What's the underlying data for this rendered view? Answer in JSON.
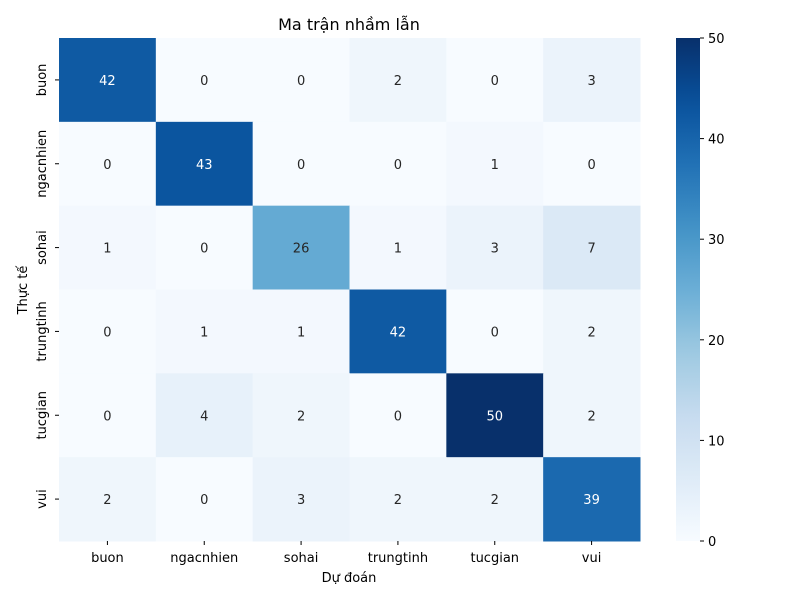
{
  "chart_data": {
    "type": "heatmap",
    "title": "Ma trận nhầm lẫn",
    "xlabel": "Dự đoán",
    "ylabel": "Thực tế",
    "x_categories": [
      "buon",
      "ngacnhien",
      "sohai",
      "trungtinh",
      "tucgian",
      "vui"
    ],
    "y_categories": [
      "buon",
      "ngacnhien",
      "sohai",
      "trungtinh",
      "tucgian",
      "vui"
    ],
    "values": [
      [
        42,
        0,
        0,
        2,
        0,
        3
      ],
      [
        0,
        43,
        0,
        0,
        1,
        0
      ],
      [
        1,
        0,
        26,
        1,
        3,
        7
      ],
      [
        0,
        1,
        1,
        42,
        0,
        2
      ],
      [
        0,
        4,
        2,
        0,
        50,
        2
      ],
      [
        2,
        0,
        3,
        2,
        2,
        39
      ]
    ],
    "colorbar": {
      "range": [
        0,
        50
      ],
      "ticks": [
        0,
        10,
        20,
        30,
        40,
        50
      ]
    },
    "colormap": "Blues",
    "grid": false
  }
}
